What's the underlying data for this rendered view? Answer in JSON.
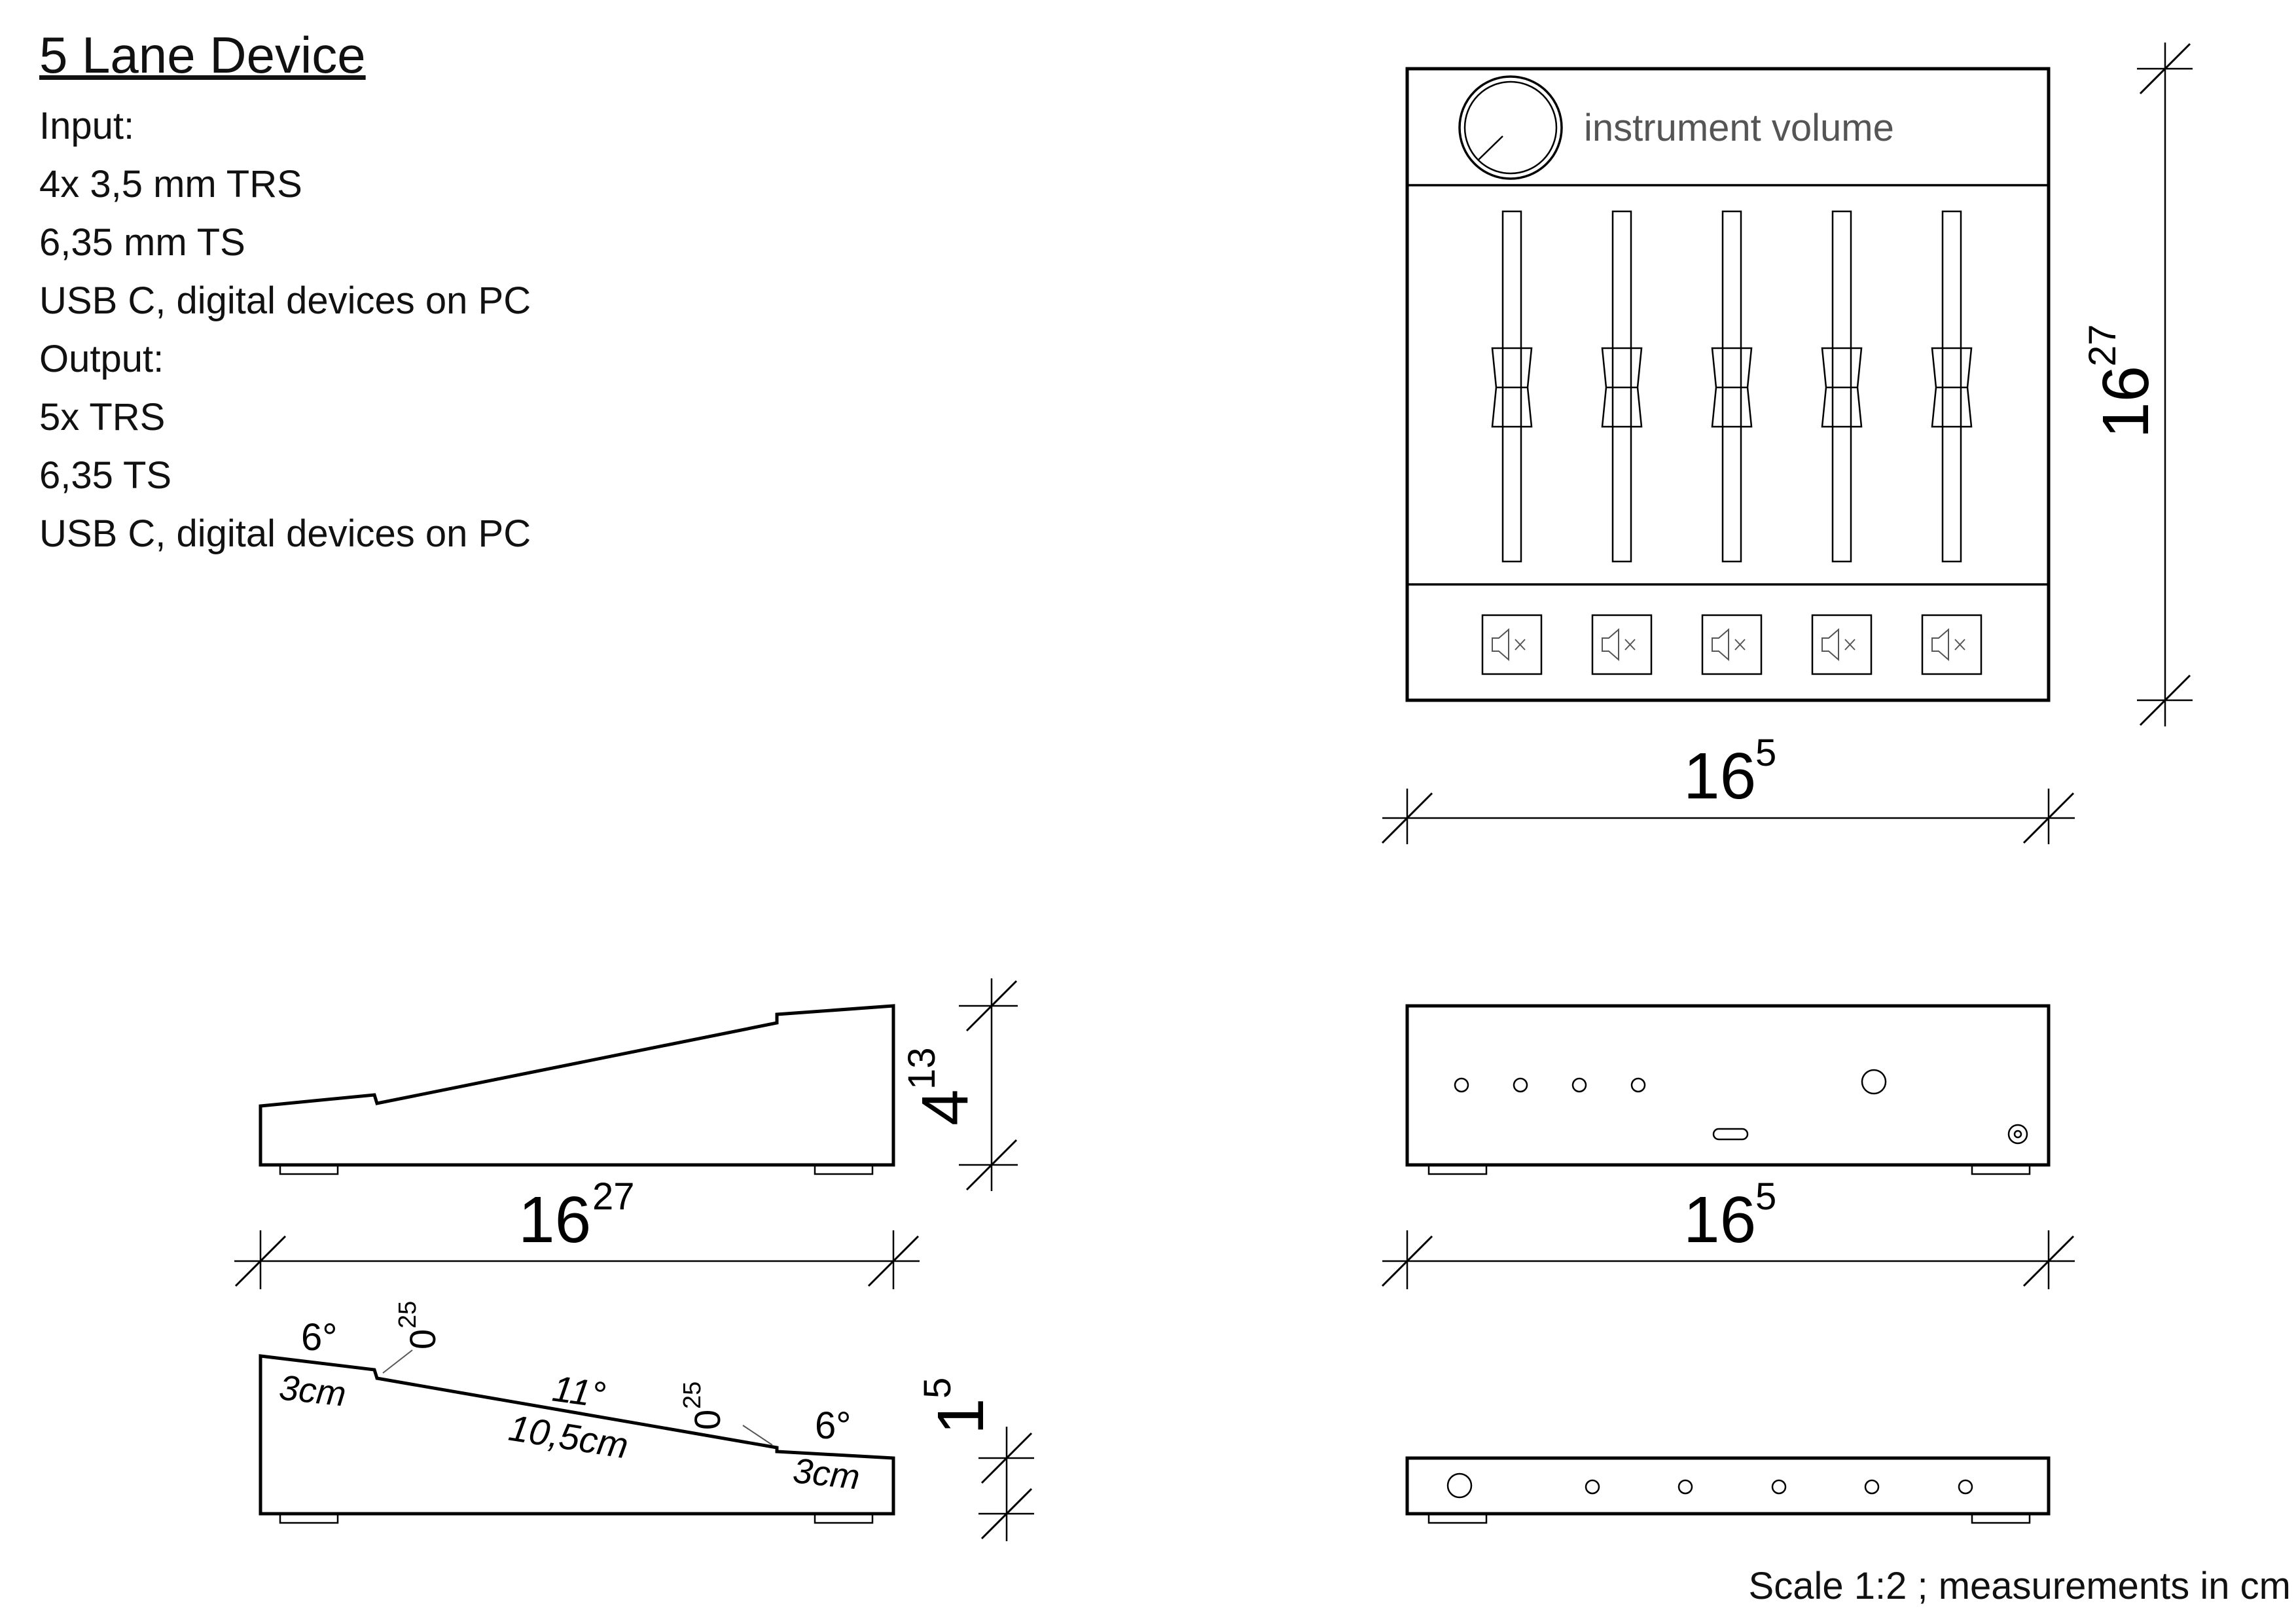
{
  "spec": {
    "title": "5 Lane Device",
    "lines": [
      "Input:",
      "4x 3,5 mm TRS",
      "6,35 mm TS",
      "USB C, digital devices on PC",
      "Output:",
      "5x TRS",
      "6,35 TS",
      "USB C, digital devices on PC"
    ]
  },
  "top_view": {
    "knob_label": "instrument volume",
    "channel_count": 5,
    "width_dim": {
      "main": "16",
      "sup": "5"
    },
    "height_dim": {
      "main": "16",
      "sup": "27"
    }
  },
  "side_view": {
    "height_dim": {
      "main": "4",
      "sup": "13"
    },
    "length_dim": {
      "main": "16",
      "sup": "27"
    }
  },
  "front_view": {
    "width_dim": {
      "main": "16",
      "sup": "5"
    }
  },
  "profile": {
    "angle_left": "6°",
    "seg_left": "3cm",
    "step_left": {
      "main": "0",
      "sup": "25"
    },
    "angle_mid": "11°",
    "seg_mid": "10,5cm",
    "step_right": {
      "main": "0",
      "sup": "25"
    },
    "angle_right": "6°",
    "seg_right": "3cm",
    "height_dim": {
      "main": "1",
      "sup": "5"
    }
  },
  "footer": {
    "scale": "Scale 1:2 ; measurements in cm"
  }
}
